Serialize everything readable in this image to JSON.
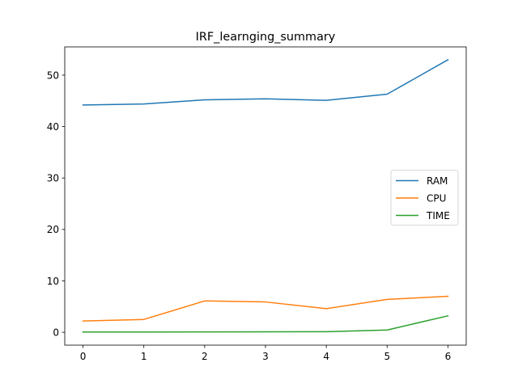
{
  "chart_data": {
    "type": "line",
    "title": "IRF_learnging_summary",
    "xlabel": "",
    "ylabel": "",
    "x": [
      0,
      1,
      2,
      3,
      4,
      5,
      6
    ],
    "xlim": [
      -0.3,
      6.3
    ],
    "ylim": [
      -2.5,
      55.5
    ],
    "xticks": [
      0,
      1,
      2,
      3,
      4,
      5,
      6
    ],
    "yticks": [
      0,
      10,
      20,
      30,
      40,
      50
    ],
    "grid": false,
    "legend_position": "center-right",
    "series": [
      {
        "name": "RAM",
        "color": "#1f77b4",
        "values": [
          44.2,
          44.4,
          45.2,
          45.4,
          45.1,
          46.3,
          53.0
        ]
      },
      {
        "name": "CPU",
        "color": "#ff7f0e",
        "values": [
          2.2,
          2.5,
          6.1,
          5.9,
          4.6,
          6.4,
          7.0
        ]
      },
      {
        "name": "TIME",
        "color": "#2ca02c",
        "values": [
          0.05,
          0.06,
          0.08,
          0.09,
          0.12,
          0.45,
          3.2
        ]
      }
    ]
  }
}
